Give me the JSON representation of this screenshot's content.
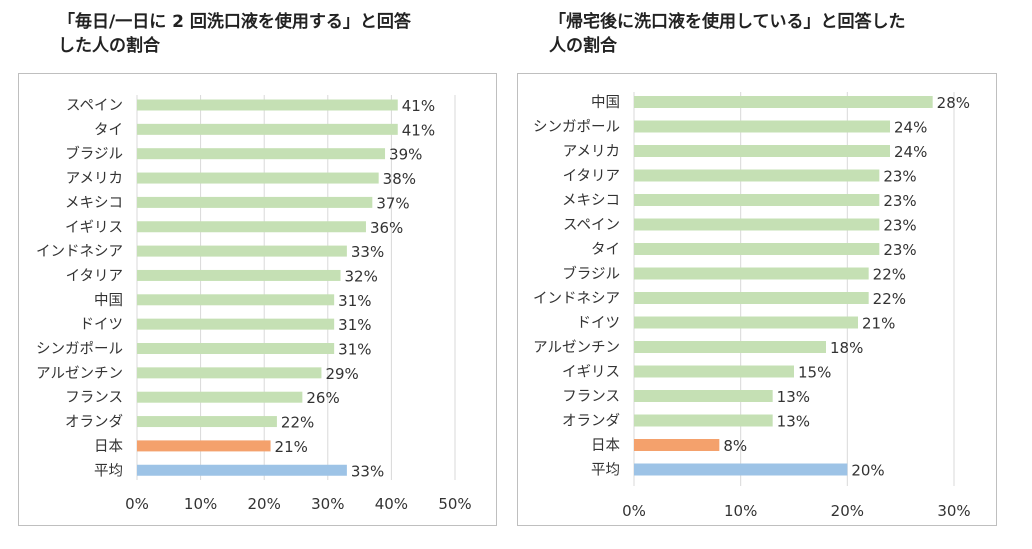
{
  "chart_data": [
    {
      "type": "bar",
      "orientation": "horizontal",
      "title_lines": [
        "「毎日/一日に 2 回洗口液を使用する」と回答",
        "した人の割合"
      ],
      "categories": [
        "スペイン",
        "タイ",
        "ブラジル",
        "アメリカ",
        "メキシコ",
        "イギリス",
        "インドネシア",
        "イタリア",
        "中国",
        "ドイツ",
        "シンガポール",
        "アルゼンチン",
        "フランス",
        "オランダ",
        "日本",
        "平均"
      ],
      "values": [
        41,
        41,
        39,
        38,
        37,
        36,
        33,
        32,
        31,
        31,
        31,
        29,
        26,
        22,
        21,
        33
      ],
      "value_labels": [
        "41%",
        "41%",
        "39%",
        "38%",
        "37%",
        "36%",
        "33%",
        "32%",
        "31%",
        "31%",
        "31%",
        "29%",
        "26%",
        "22%",
        "21%",
        "33%"
      ],
      "xlim": [
        0,
        50
      ],
      "ticks": [
        "0%",
        "10%",
        "20%",
        "30%",
        "40%",
        "50%"
      ],
      "tick_values": [
        0,
        10,
        20,
        30,
        40,
        50
      ],
      "grid": "vertical",
      "legend": "none",
      "colors": {
        "default": "#c5e0b4",
        "日本": "#f4a16c",
        "平均": "#9dc3e6"
      }
    },
    {
      "type": "bar",
      "orientation": "horizontal",
      "title_lines": [
        "「帰宅後に洗口液を使用している」と回答した",
        "人の割合"
      ],
      "categories": [
        "中国",
        "シンガポール",
        "アメリカ",
        "イタリア",
        "メキシコ",
        "スペイン",
        "タイ",
        "ブラジル",
        "インドネシア",
        "ドイツ",
        "アルゼンチン",
        "イギリス",
        "フランス",
        "オランダ",
        "日本",
        "平均"
      ],
      "values": [
        28,
        24,
        24,
        23,
        23,
        23,
        23,
        22,
        22,
        21,
        18,
        15,
        13,
        13,
        8,
        20
      ],
      "value_labels": [
        "28%",
        "24%",
        "24%",
        "23%",
        "23%",
        "23%",
        "23%",
        "22%",
        "22%",
        "21%",
        "18%",
        "15%",
        "13%",
        "13%",
        "8%",
        "20%"
      ],
      "xlim": [
        0,
        30
      ],
      "ticks": [
        "0%",
        "10%",
        "20%",
        "30%"
      ],
      "tick_values": [
        0,
        10,
        20,
        30
      ],
      "grid": "vertical",
      "legend": "none",
      "colors": {
        "default": "#c5e0b4",
        "日本": "#f4a16c",
        "平均": "#9dc3e6"
      }
    }
  ]
}
